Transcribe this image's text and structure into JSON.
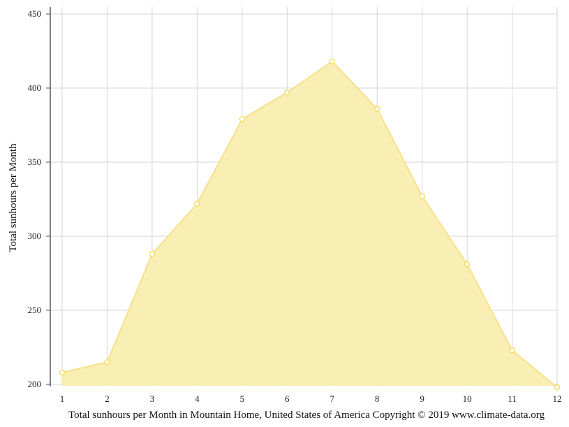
{
  "chart_data": {
    "type": "area",
    "x": [
      1,
      2,
      3,
      4,
      5,
      6,
      7,
      8,
      9,
      10,
      11,
      12
    ],
    "values": [
      208,
      215,
      288,
      322,
      379,
      397,
      418,
      386,
      327,
      281,
      223,
      198
    ],
    "ylabel": "Total sunhours per Month",
    "yticks": [
      200,
      250,
      300,
      350,
      400,
      450
    ],
    "ylim": [
      200,
      450
    ],
    "xlim": [
      1,
      12
    ],
    "grid": true,
    "caption": "Total sunhours per Month in Mountain Home, United States of America Copyright © 2019 www.climate-data.org",
    "colors": {
      "fill": "#f9eeae",
      "line": "#f6e08a",
      "marker_stroke": "#f5d850",
      "grid": "#d6d6d6",
      "axis": "#555555"
    }
  }
}
